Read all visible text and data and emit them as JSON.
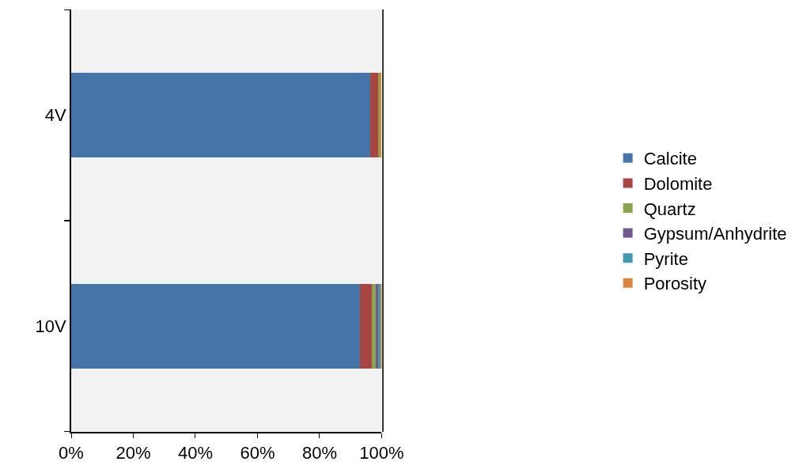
{
  "chart_data": {
    "type": "bar",
    "orientation": "horizontal",
    "stacked": true,
    "categories": [
      "4V",
      "10V"
    ],
    "series": [
      {
        "name": "Calcite",
        "color": "#4674a8",
        "values": [
          96.4,
          93.1
        ]
      },
      {
        "name": "Dolomite",
        "color": "#a84643",
        "values": [
          2.6,
          3.6
        ]
      },
      {
        "name": "Quartz",
        "color": "#89a54e",
        "values": [
          0.4,
          1.5
        ]
      },
      {
        "name": "Gypsum/Anhydrite",
        "color": "#71588f",
        "values": [
          0,
          0.6
        ]
      },
      {
        "name": "Pyrite",
        "color": "#4198af",
        "values": [
          null,
          0.9
        ]
      },
      {
        "name": "Porosity",
        "color": "#db843d",
        "values": [
          0.4,
          0.3
        ]
      }
    ],
    "xlim": [
      0,
      100
    ],
    "xticks": [
      {
        "value": 0,
        "label": "0%"
      },
      {
        "value": 20,
        "label": "20%"
      },
      {
        "value": 40,
        "label": "40%"
      },
      {
        "value": 60,
        "label": "60%"
      },
      {
        "value": 80,
        "label": "80%"
      },
      {
        "value": 100,
        "label": "100%"
      }
    ],
    "grid": false,
    "legend": "right"
  }
}
